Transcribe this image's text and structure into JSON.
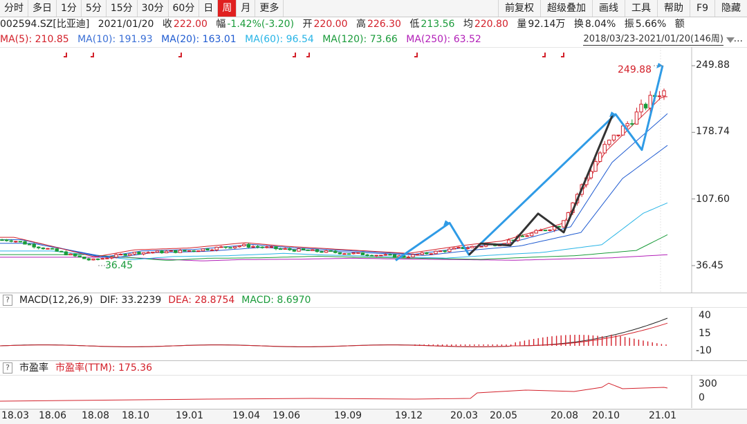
{
  "toolbar": {
    "periods": [
      "分时",
      "多日",
      "1分",
      "5分",
      "15分",
      "30分",
      "60分",
      "日",
      "周",
      "月",
      "更多"
    ],
    "active_period": "周",
    "actions": [
      "前复权",
      "超级叠加",
      "画线",
      "工具",
      "帮助",
      "F9",
      "隐藏"
    ]
  },
  "info": {
    "symbol": "002594.SZ[比亚迪]",
    "date": "2021/01/20",
    "close_label": "收",
    "close": "222.00",
    "change_label": "幅",
    "change": "-1.42%(-3.20)",
    "open_label": "开",
    "open": "220.00",
    "high_label": "高",
    "high": "226.30",
    "low_label": "低",
    "low": "213.56",
    "avg_label": "均",
    "avg": "220.80",
    "volume_label": "量",
    "volume": "92.14万",
    "turnover_label": "换",
    "turnover": "8.04%",
    "amplitude_label": "振",
    "amplitude": "5.66%",
    "amount_label": "额"
  },
  "ma": {
    "ma5": "MA(5): 210.85",
    "ma10": "MA(10): 191.93",
    "ma20": "MA(20): 163.01",
    "ma60": "MA(60): 96.54",
    "ma120": "MA(120): 73.66",
    "ma250": "MA(250): 63.52",
    "range": "2018/03/23-2021/01/20(146周)",
    "more": "..."
  },
  "colors": {
    "ma5": "#d3202a",
    "ma10": "#1f5bd1",
    "ma20": "#1f5bd1",
    "ma60": "#27b4e6",
    "ma120": "#1a9b3a",
    "ma250": "#b21fb8",
    "up": "#d3202a",
    "down": "#1a9b3a",
    "trend_blue": "#2f9be6",
    "trend_black": "#333333"
  },
  "price_axis": [
    "249.88",
    "178.74",
    "107.60",
    "36.45"
  ],
  "price_annotations": {
    "high": "249.88",
    "low": "36.45"
  },
  "macd": {
    "help": "?",
    "name": "MACD(12,26,9)",
    "dif": "DIF: 33.2239",
    "dea": "DEA: 28.8754",
    "macd": "MACD: 8.6970",
    "axis": [
      "40",
      "15",
      "-10"
    ]
  },
  "pe": {
    "help": "?",
    "name": "市盈率",
    "ttm": "市盈率(TTM): 175.36",
    "axis": [
      "300",
      "0"
    ]
  },
  "x_axis": [
    "18.03",
    "18.06",
    "18.08",
    "18.10",
    "19.01",
    "19.04",
    "19.06",
    "19.09",
    "19.12",
    "20.03",
    "20.05",
    "20.08",
    "20.10",
    "21.01"
  ],
  "chart_data": {
    "type": "line",
    "title": "",
    "x_ticks": [
      "18.03",
      "18.06",
      "18.08",
      "18.10",
      "19.01",
      "19.04",
      "19.06",
      "19.09",
      "19.12",
      "20.03",
      "20.05",
      "20.08",
      "20.10",
      "21.01"
    ],
    "ylim": [
      36.45,
      249.88
    ],
    "y_ticks": [
      36.45,
      107.6,
      178.74,
      249.88
    ],
    "annotations": [
      {
        "label": "249.88",
        "x": "21.01",
        "y": 249.88
      },
      {
        "label": "36.45",
        "x": "18.08",
        "y": 36.45
      }
    ],
    "series": [
      {
        "name": "MA(5)",
        "last": 210.85
      },
      {
        "name": "MA(10)",
        "last": 191.93
      },
      {
        "name": "MA(20)",
        "last": 163.01
      },
      {
        "name": "MA(60)",
        "last": 96.54
      },
      {
        "name": "MA(120)",
        "last": 73.66
      },
      {
        "name": "MA(250)",
        "last": 63.52
      }
    ],
    "close_path": [
      [
        "18.03",
        64
      ],
      [
        "18.06",
        54
      ],
      [
        "18.08",
        42
      ],
      [
        "18.10",
        50
      ],
      [
        "19.01",
        52
      ],
      [
        "19.04",
        58
      ],
      [
        "19.06",
        54
      ],
      [
        "19.09",
        50
      ],
      [
        "19.12",
        46
      ],
      [
        "20.03",
        55
      ],
      [
        "20.05",
        60
      ],
      [
        "20.08",
        80
      ],
      [
        "20.10",
        160
      ],
      [
        "21.01",
        222
      ]
    ],
    "trend_blue": [
      [
        "19.12",
        42
      ],
      [
        "20.03",
        82
      ],
      [
        "20.03",
        48
      ],
      [
        "20.10",
        198
      ],
      [
        "20.10",
        160
      ],
      [
        "21.01",
        250
      ]
    ],
    "trend_black": [
      [
        "20.03",
        48
      ],
      [
        "20.03",
        60
      ],
      [
        "20.05",
        58
      ],
      [
        "20.08",
        92
      ],
      [
        "20.08",
        72
      ],
      [
        "20.10",
        198
      ]
    ]
  }
}
